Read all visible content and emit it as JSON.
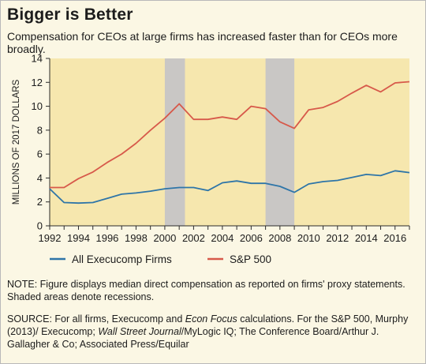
{
  "title": "Bigger is Better",
  "subtitle": "Compensation for CEOs at large firms has increased faster than for CEOs more broadly.",
  "note": "NOTE: Figure displays median direct compensation as reported on firms' proxy statements. Shaded areas denote recessions.",
  "source": {
    "p1": "SOURCE: For all firms, Execucomp and ",
    "p2": "Econ Focus",
    "p3": " calculations. For the S&P 500, Murphy (2013)/ Execucomp; ",
    "p4": "Wall Street Journal",
    "p5": "/MyLogic IQ; The Conference Board/Arthur J. Gallagher & Co; Associated Press/Equilar"
  },
  "colors": {
    "plot_bg": "#f6e7ae",
    "recession": "#c9c7c5",
    "all_firms": "#2e75a8",
    "sp500": "#d7594a",
    "axis": "#2b2b2b"
  },
  "chart_data": {
    "type": "line",
    "ylabel": "MILLIONS OF 2017 DOLLARS",
    "xlabel": "",
    "xlim": [
      1992,
      2017
    ],
    "ylim": [
      0,
      14
    ],
    "yticks": [
      "0",
      "2",
      "4",
      "6",
      "8",
      "10",
      "12",
      "14"
    ],
    "xticks": [
      "1992",
      "1994",
      "1996",
      "1998",
      "2000",
      "2002",
      "2004",
      "2006",
      "2008",
      "2010",
      "2012",
      "2014",
      "2016"
    ],
    "recessions": [
      [
        2000,
        2001.4
      ],
      [
        2007,
        2009
      ]
    ],
    "legend": "bottom",
    "grid": false,
    "x": [
      1992,
      1993,
      1994,
      1995,
      1996,
      1997,
      1998,
      1999,
      2000,
      2001,
      2002,
      2003,
      2004,
      2005,
      2006,
      2007,
      2008,
      2009,
      2010,
      2011,
      2012,
      2013,
      2014,
      2015,
      2016,
      2017
    ],
    "series": [
      {
        "name": "All Execucomp Firms",
        "values": [
          3.1,
          1.95,
          1.9,
          1.95,
          2.3,
          2.65,
          2.75,
          2.9,
          3.1,
          3.2,
          3.2,
          2.95,
          3.6,
          3.75,
          3.55,
          3.55,
          3.3,
          2.8,
          3.5,
          3.7,
          3.8,
          4.05,
          4.3,
          4.2,
          4.6,
          4.45
        ]
      },
      {
        "name": "S&P 500",
        "values": [
          3.2,
          3.2,
          3.95,
          4.5,
          5.3,
          6.0,
          6.9,
          8.0,
          9.0,
          10.2,
          8.9,
          8.9,
          9.1,
          8.9,
          10.0,
          9.8,
          8.7,
          8.15,
          9.7,
          9.9,
          10.4,
          11.1,
          11.75,
          11.2,
          11.95,
          12.05
        ]
      }
    ]
  }
}
